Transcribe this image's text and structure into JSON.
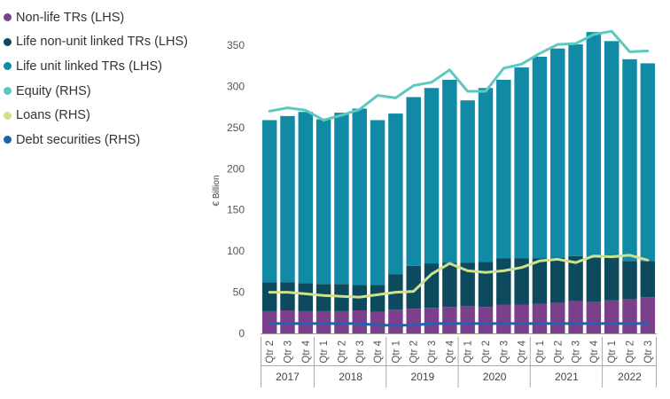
{
  "chart_data": {
    "type": "bar",
    "stacked": true,
    "title": "",
    "xlabel": "",
    "ylabel": "€ Billion",
    "ylim": [
      0,
      370
    ],
    "yticks": [
      0,
      50,
      100,
      150,
      200,
      250,
      300,
      350
    ],
    "grid": false,
    "legend_position": "top-left",
    "categories": [
      "Qtr 2",
      "Qtr 3",
      "Qtr 4",
      "Qtr 1",
      "Qtr 2",
      "Qtr 3",
      "Qtr 4",
      "Qtr 1",
      "Qtr 2",
      "Qtr 3",
      "Qtr 4",
      "Qtr 1",
      "Qtr 2",
      "Qtr 3",
      "Qtr 4",
      "Qtr 1",
      "Qtr 2",
      "Qtr 3",
      "Qtr 4",
      "Qtr 1",
      "Qtr 2",
      "Qtr 3"
    ],
    "year_groups": [
      {
        "label": "2017",
        "count": 3
      },
      {
        "label": "2018",
        "count": 4
      },
      {
        "label": "2019",
        "count": 4
      },
      {
        "label": "2020",
        "count": 4
      },
      {
        "label": "2021",
        "count": 4
      },
      {
        "label": "2022",
        "count": 3
      }
    ],
    "bar_series": [
      {
        "name": "Non-life TRs (LHS)",
        "color": "#7b3f8c",
        "values": [
          27,
          28,
          27,
          27,
          27,
          28,
          26,
          29,
          30,
          31,
          32,
          33,
          32,
          35,
          35,
          36,
          37,
          39,
          38,
          40,
          42,
          44
        ]
      },
      {
        "name": "Life non-unit linked TRs (LHS)",
        "color": "#0d4a5e",
        "values": [
          35,
          34,
          34,
          33,
          33,
          31,
          33,
          43,
          52,
          54,
          54,
          53,
          55,
          56,
          56,
          55,
          55,
          55,
          54,
          52,
          46,
          44
        ]
      },
      {
        "name": "Life unit linked TRs (LHS)",
        "color": "#118aa6",
        "values": [
          197,
          202,
          208,
          200,
          208,
          214,
          200,
          195,
          205,
          213,
          222,
          197,
          211,
          217,
          232,
          245,
          254,
          257,
          274,
          263,
          245,
          240
        ]
      }
    ],
    "line_series": [
      {
        "name": "Equity (RHS)",
        "color": "#5cc8c0",
        "values": [
          270,
          274,
          271,
          259,
          265,
          272,
          289,
          286,
          301,
          305,
          320,
          294,
          294,
          322,
          327,
          340,
          351,
          352,
          363,
          367,
          342,
          343
        ]
      },
      {
        "name": "Loans (RHS)",
        "color": "#cde28a",
        "values": [
          50,
          50,
          48,
          46,
          45,
          44,
          47,
          50,
          51,
          72,
          85,
          76,
          74,
          76,
          80,
          88,
          90,
          86,
          94,
          93,
          95,
          89
        ]
      },
      {
        "name": "Debt securities (RHS)",
        "color": "#1f63b0",
        "values": [
          12,
          12,
          12,
          12,
          12,
          12,
          10,
          10,
          10,
          12,
          12,
          12,
          12,
          12,
          12,
          12,
          12,
          12,
          12,
          12,
          12,
          12
        ]
      }
    ]
  }
}
